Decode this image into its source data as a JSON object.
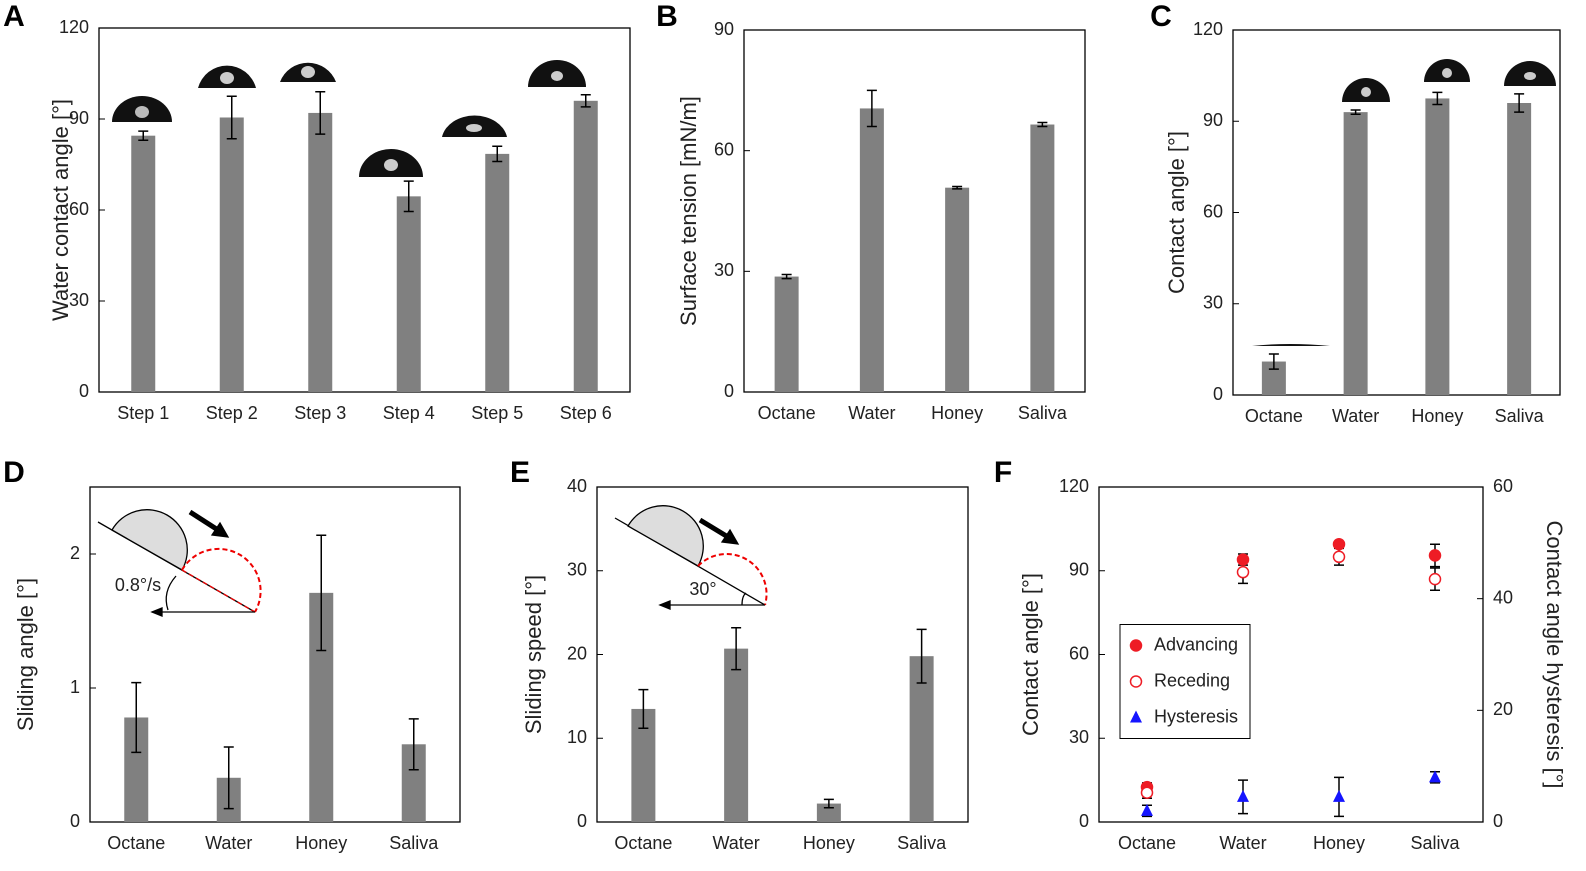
{
  "chart_data": [
    {
      "type": "bar",
      "panel": "A",
      "ylabel": "Water contact angle [°]",
      "color": "#808080",
      "categories": [
        "Step 1",
        "Step 2",
        "Step 3",
        "Step 4",
        "Step 5",
        "Step 6"
      ],
      "values": [
        84.5,
        90.5,
        92,
        64.5,
        78.5,
        96
      ],
      "errors": [
        1.5,
        7,
        7,
        5,
        2.5,
        2
      ],
      "ylim": [
        0,
        120
      ],
      "yticks": [
        0,
        30,
        60,
        90,
        120
      ]
    },
    {
      "type": "bar",
      "panel": "B",
      "ylabel": "Surface tension [mN/m]",
      "color": "#808080",
      "categories": [
        "Octane",
        "Water",
        "Honey",
        "Saliva"
      ],
      "values": [
        28.7,
        70.5,
        50.8,
        66.5
      ],
      "errors": [
        0.5,
        4.5,
        0.3,
        0.5
      ],
      "ylim": [
        0,
        90
      ],
      "yticks": [
        0,
        30,
        60,
        90
      ]
    },
    {
      "type": "bar",
      "panel": "C",
      "ylabel": "Contact angle [°]",
      "color": "#808080",
      "categories": [
        "Octane",
        "Water",
        "Honey",
        "Saliva"
      ],
      "values": [
        11,
        93,
        97.5,
        96
      ],
      "errors": [
        2.5,
        0.7,
        2,
        3
      ],
      "ylim": [
        0,
        120
      ],
      "yticks": [
        0,
        30,
        60,
        90,
        120
      ]
    },
    {
      "type": "bar",
      "panel": "D",
      "ylabel": "Sliding angle [°]",
      "color": "#808080",
      "annotation": "0.8°/s",
      "categories": [
        "Octane",
        "Water",
        "Honey",
        "Saliva"
      ],
      "values": [
        0.78,
        0.33,
        1.71,
        0.58
      ],
      "errors": [
        0.26,
        0.23,
        0.43,
        0.19
      ],
      "ylim": [
        0,
        2.5
      ],
      "yticks": [
        0,
        1,
        2
      ]
    },
    {
      "type": "bar",
      "panel": "E",
      "ylabel": "Sliding speed [°]",
      "color": "#808080",
      "annotation": "30°",
      "categories": [
        "Octane",
        "Water",
        "Honey",
        "Saliva"
      ],
      "values": [
        13.5,
        20.7,
        2.2,
        19.8
      ],
      "errors": [
        2.3,
        2.5,
        0.5,
        3.2
      ],
      "ylim": [
        0,
        40
      ],
      "yticks": [
        0,
        10,
        20,
        30,
        40
      ]
    },
    {
      "type": "dot",
      "panel": "F",
      "ylabel": "Contact angle [°]",
      "y2label": "Contact angle hysteresis [°]",
      "y_color": "#ee1c25",
      "y2_color": "#1515ff",
      "legend": "center-left",
      "categories": [
        "Octane",
        "Water",
        "Honey",
        "Saliva"
      ],
      "series": [
        {
          "name": "Advancing",
          "color": "#ee1c25",
          "marker": "circle-filled",
          "values": [
            12.5,
            94,
            99.5,
            95.5
          ],
          "errors": [
            1.5,
            2,
            1,
            4
          ]
        },
        {
          "name": "Receding",
          "color": "#ee1c25",
          "marker": "circle-open",
          "values": [
            10.5,
            89.5,
            95,
            87
          ],
          "errors": [
            2,
            4,
            3,
            4
          ]
        },
        {
          "name": "Hysteresis",
          "color": "#1515ff",
          "marker": "triangle",
          "axis": "y2",
          "values": [
            2,
            4.5,
            4.5,
            8
          ],
          "errors": [
            1,
            3,
            3.5,
            1
          ]
        }
      ],
      "ylim": [
        0,
        120
      ],
      "yticks": [
        0,
        30,
        60,
        90,
        120
      ],
      "y2lim": [
        0,
        60
      ],
      "y2ticks": [
        0,
        20,
        40,
        60
      ]
    }
  ]
}
